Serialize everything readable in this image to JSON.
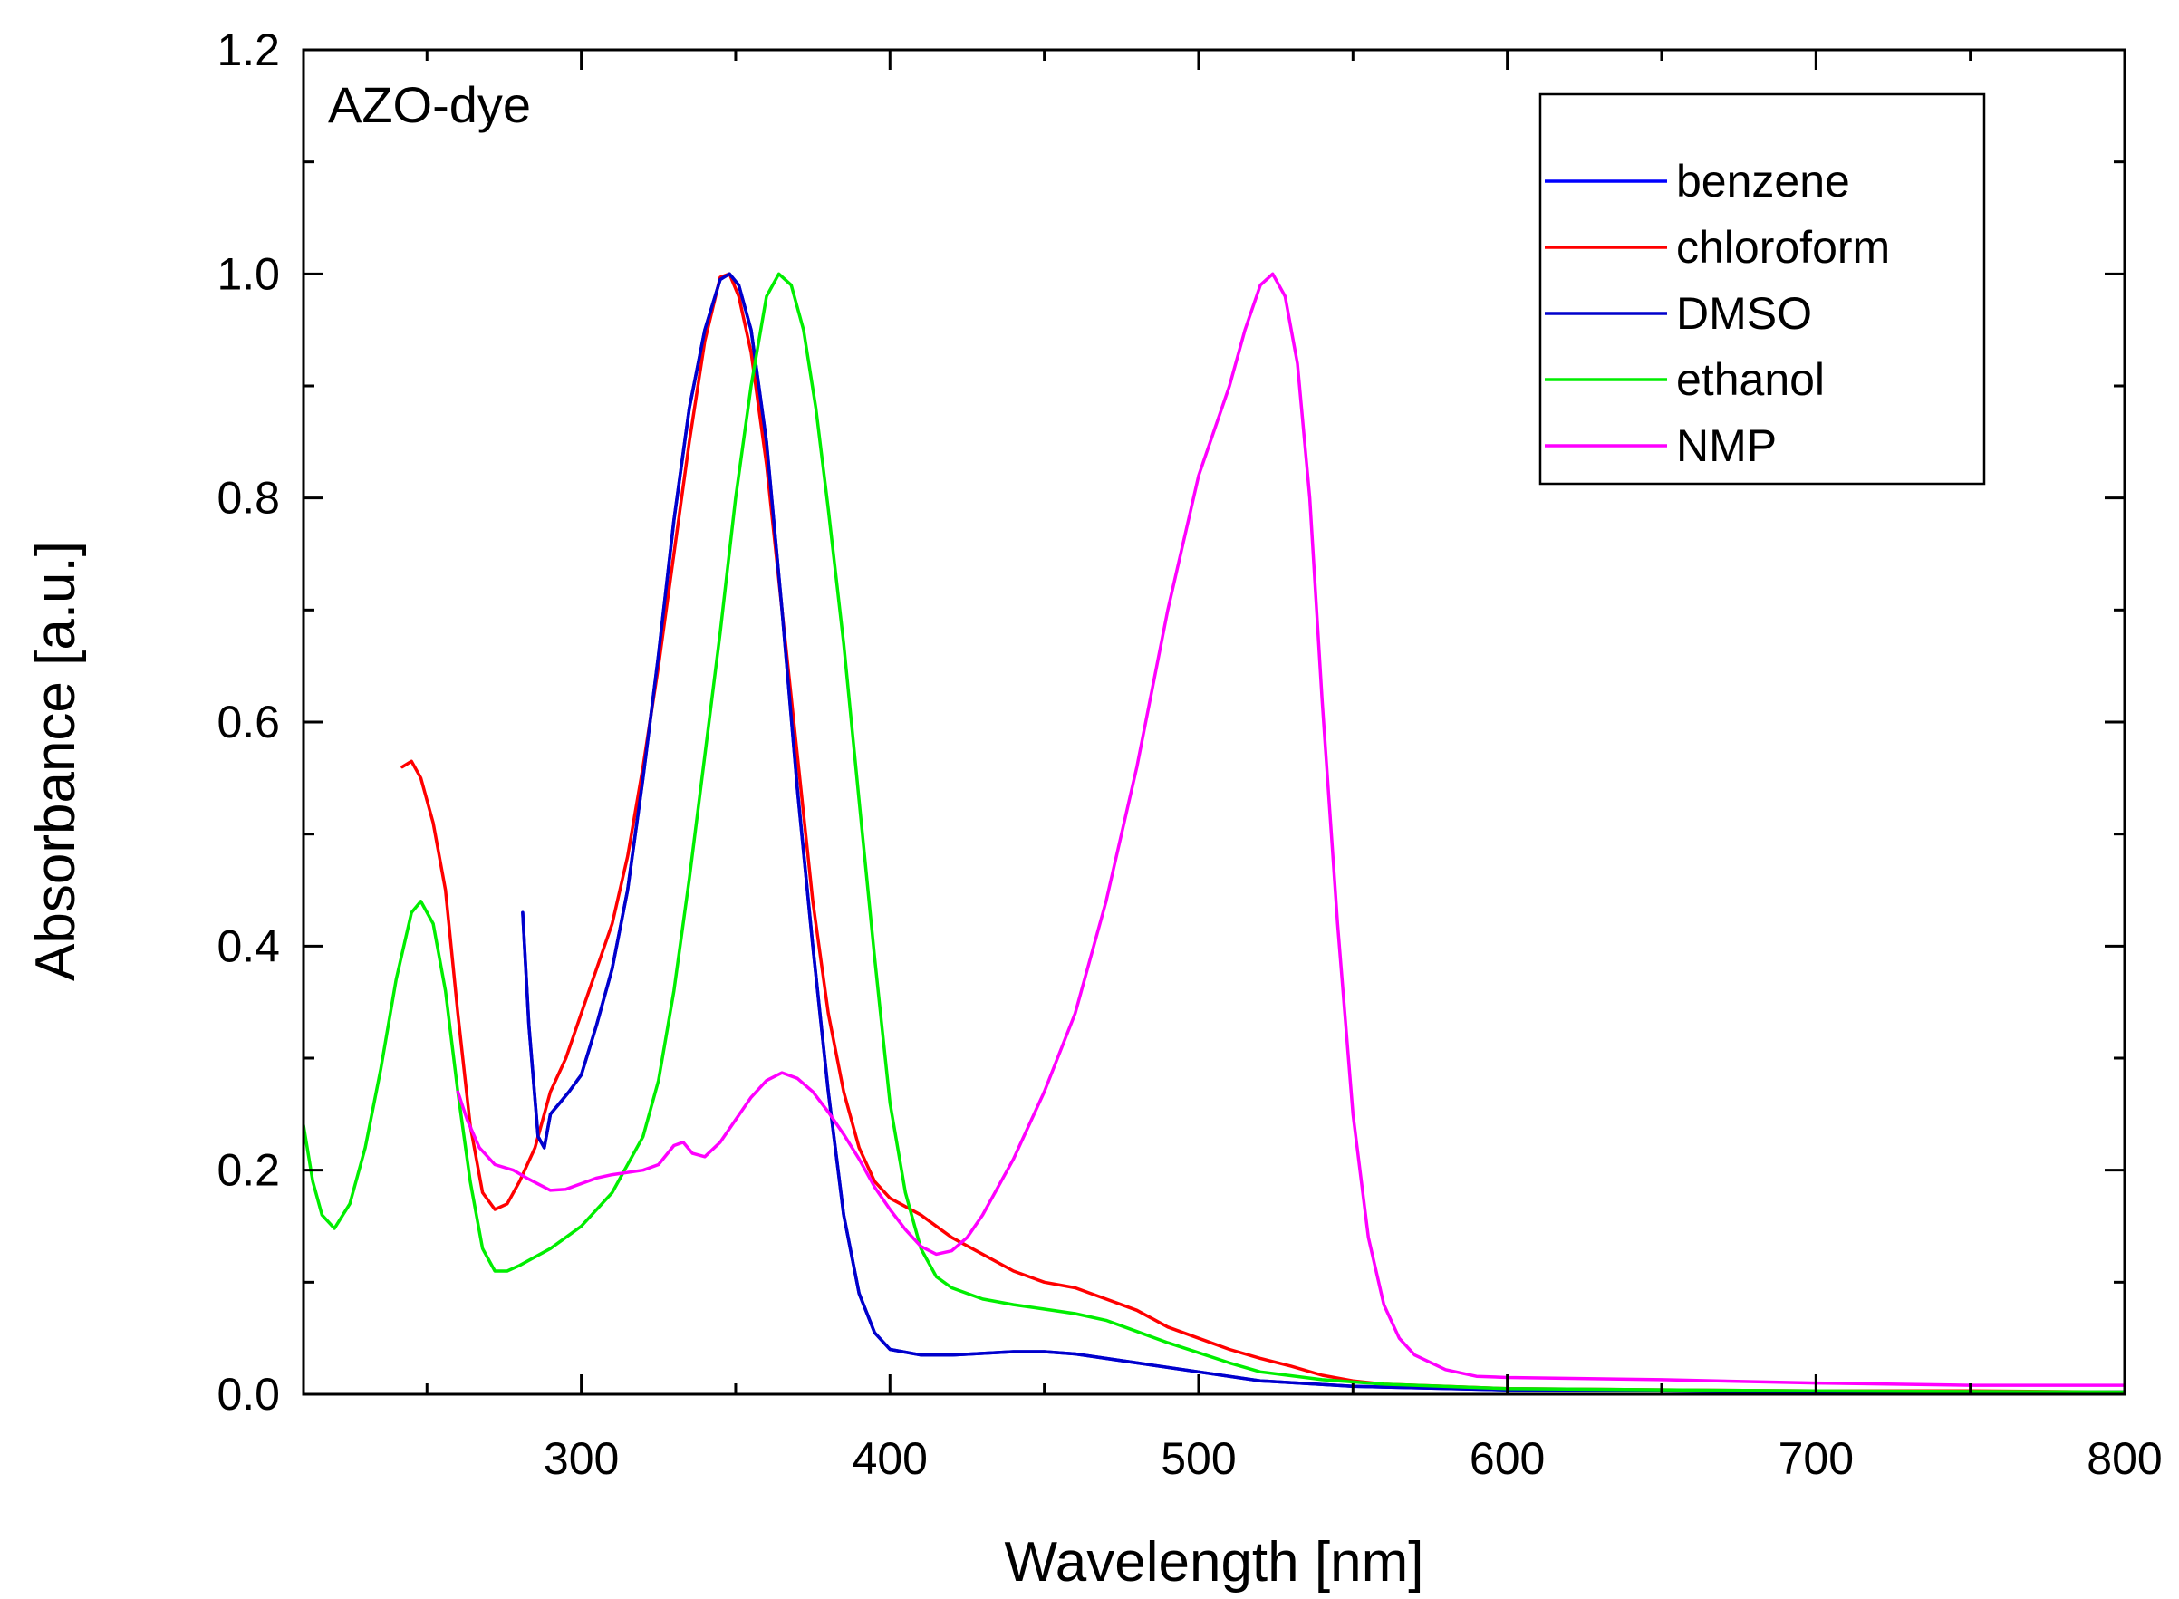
{
  "chart_data": {
    "type": "line",
    "title": "",
    "annotation": "AZO-dye",
    "xlabel": "Wavelength [nm]",
    "ylabel": "Absorbance [a.u.]",
    "xlim": [
      210,
      800
    ],
    "ylim": [
      0,
      1.2
    ],
    "x_ticks": [
      300,
      400,
      500,
      600,
      700,
      800
    ],
    "x_tick_labels": [
      "300",
      "400",
      "500",
      "600",
      "700",
      "800"
    ],
    "y_ticks": [
      0,
      0.2,
      0.4,
      0.6,
      0.8,
      1.0,
      1.2
    ],
    "y_tick_labels": [
      "0.0",
      "0.2",
      "0.4",
      "0.6",
      "0.8",
      "1.0",
      "1.2"
    ],
    "grid": false,
    "legend_position": "top-right",
    "series": [
      {
        "name": "benzene",
        "color": "#0000ff",
        "points": [
          [
            281,
            0.43
          ],
          [
            283,
            0.33
          ],
          [
            286,
            0.23
          ],
          [
            288,
            0.22
          ],
          [
            290,
            0.25
          ],
          [
            293,
            0.26
          ],
          [
            296,
            0.27
          ],
          [
            300,
            0.285
          ],
          [
            305,
            0.33
          ],
          [
            310,
            0.38
          ],
          [
            315,
            0.45
          ],
          [
            320,
            0.55
          ],
          [
            325,
            0.66
          ],
          [
            330,
            0.78
          ],
          [
            335,
            0.88
          ],
          [
            340,
            0.95
          ],
          [
            345,
            0.995
          ],
          [
            348,
            1.0
          ],
          [
            351,
            0.99
          ],
          [
            355,
            0.95
          ],
          [
            360,
            0.85
          ],
          [
            365,
            0.7
          ],
          [
            370,
            0.54
          ],
          [
            375,
            0.4
          ],
          [
            380,
            0.27
          ],
          [
            385,
            0.16
          ],
          [
            390,
            0.09
          ],
          [
            395,
            0.055
          ],
          [
            400,
            0.04
          ],
          [
            410,
            0.035
          ],
          [
            420,
            0.035
          ],
          [
            440,
            0.038
          ],
          [
            450,
            0.038
          ],
          [
            460,
            0.036
          ],
          [
            480,
            0.028
          ],
          [
            500,
            0.02
          ],
          [
            520,
            0.012
          ],
          [
            550,
            0.007
          ],
          [
            600,
            0.004
          ],
          [
            700,
            0.002
          ],
          [
            800,
            0.002
          ]
        ]
      },
      {
        "name": "chloroform",
        "color": "#ff0000",
        "points": [
          [
            242,
            0.56
          ],
          [
            245,
            0.565
          ],
          [
            248,
            0.55
          ],
          [
            252,
            0.51
          ],
          [
            256,
            0.45
          ],
          [
            260,
            0.34
          ],
          [
            264,
            0.24
          ],
          [
            268,
            0.18
          ],
          [
            272,
            0.165
          ],
          [
            276,
            0.17
          ],
          [
            280,
            0.19
          ],
          [
            285,
            0.22
          ],
          [
            290,
            0.27
          ],
          [
            295,
            0.3
          ],
          [
            300,
            0.34
          ],
          [
            305,
            0.38
          ],
          [
            310,
            0.42
          ],
          [
            315,
            0.48
          ],
          [
            320,
            0.56
          ],
          [
            325,
            0.65
          ],
          [
            330,
            0.75
          ],
          [
            335,
            0.85
          ],
          [
            340,
            0.94
          ],
          [
            345,
            0.997
          ],
          [
            348,
            1.0
          ],
          [
            351,
            0.98
          ],
          [
            355,
            0.93
          ],
          [
            360,
            0.83
          ],
          [
            365,
            0.7
          ],
          [
            370,
            0.57
          ],
          [
            375,
            0.44
          ],
          [
            380,
            0.34
          ],
          [
            385,
            0.27
          ],
          [
            390,
            0.22
          ],
          [
            395,
            0.19
          ],
          [
            400,
            0.175
          ],
          [
            410,
            0.16
          ],
          [
            420,
            0.14
          ],
          [
            430,
            0.125
          ],
          [
            440,
            0.11
          ],
          [
            450,
            0.1
          ],
          [
            460,
            0.095
          ],
          [
            470,
            0.085
          ],
          [
            480,
            0.075
          ],
          [
            490,
            0.06
          ],
          [
            500,
            0.05
          ],
          [
            510,
            0.04
          ],
          [
            520,
            0.032
          ],
          [
            530,
            0.025
          ],
          [
            540,
            0.017
          ],
          [
            550,
            0.012
          ],
          [
            560,
            0.009
          ],
          [
            580,
            0.007
          ],
          [
            600,
            0.005
          ],
          [
            650,
            0.004
          ],
          [
            700,
            0.003
          ],
          [
            750,
            0.003
          ],
          [
            800,
            0.002
          ]
        ]
      },
      {
        "name": "DMSO",
        "color": "#0000cc",
        "points": [
          [
            281,
            0.43
          ],
          [
            283,
            0.33
          ],
          [
            286,
            0.23
          ],
          [
            288,
            0.22
          ],
          [
            290,
            0.25
          ],
          [
            293,
            0.26
          ],
          [
            296,
            0.27
          ],
          [
            300,
            0.285
          ],
          [
            305,
            0.33
          ],
          [
            310,
            0.38
          ],
          [
            315,
            0.45
          ],
          [
            320,
            0.55
          ],
          [
            325,
            0.66
          ],
          [
            330,
            0.78
          ],
          [
            335,
            0.88
          ],
          [
            340,
            0.95
          ],
          [
            345,
            0.995
          ],
          [
            348,
            1.0
          ],
          [
            351,
            0.99
          ],
          [
            355,
            0.95
          ],
          [
            360,
            0.85
          ],
          [
            365,
            0.7
          ],
          [
            370,
            0.54
          ],
          [
            375,
            0.4
          ],
          [
            380,
            0.27
          ],
          [
            385,
            0.16
          ],
          [
            390,
            0.09
          ],
          [
            395,
            0.055
          ],
          [
            400,
            0.04
          ],
          [
            410,
            0.035
          ],
          [
            420,
            0.035
          ],
          [
            440,
            0.038
          ],
          [
            450,
            0.038
          ],
          [
            460,
            0.036
          ],
          [
            480,
            0.028
          ],
          [
            500,
            0.02
          ],
          [
            520,
            0.012
          ],
          [
            550,
            0.007
          ],
          [
            600,
            0.004
          ],
          [
            700,
            0.002
          ],
          [
            800,
            0.002
          ]
        ]
      },
      {
        "name": "ethanol",
        "color": "#00ee00",
        "points": [
          [
            210,
            0.24
          ],
          [
            213,
            0.19
          ],
          [
            216,
            0.16
          ],
          [
            220,
            0.148
          ],
          [
            225,
            0.17
          ],
          [
            230,
            0.22
          ],
          [
            235,
            0.29
          ],
          [
            240,
            0.37
          ],
          [
            245,
            0.43
          ],
          [
            248,
            0.44
          ],
          [
            252,
            0.42
          ],
          [
            256,
            0.36
          ],
          [
            260,
            0.27
          ],
          [
            264,
            0.19
          ],
          [
            268,
            0.13
          ],
          [
            272,
            0.11
          ],
          [
            276,
            0.11
          ],
          [
            280,
            0.115
          ],
          [
            290,
            0.13
          ],
          [
            300,
            0.15
          ],
          [
            310,
            0.18
          ],
          [
            320,
            0.23
          ],
          [
            325,
            0.28
          ],
          [
            330,
            0.36
          ],
          [
            335,
            0.46
          ],
          [
            340,
            0.57
          ],
          [
            345,
            0.68
          ],
          [
            350,
            0.8
          ],
          [
            355,
            0.9
          ],
          [
            360,
            0.98
          ],
          [
            364,
            1.0
          ],
          [
            368,
            0.99
          ],
          [
            372,
            0.95
          ],
          [
            376,
            0.88
          ],
          [
            380,
            0.79
          ],
          [
            385,
            0.67
          ],
          [
            390,
            0.53
          ],
          [
            395,
            0.39
          ],
          [
            400,
            0.26
          ],
          [
            405,
            0.18
          ],
          [
            410,
            0.13
          ],
          [
            415,
            0.105
          ],
          [
            420,
            0.095
          ],
          [
            430,
            0.085
          ],
          [
            440,
            0.08
          ],
          [
            450,
            0.076
          ],
          [
            460,
            0.072
          ],
          [
            470,
            0.066
          ],
          [
            480,
            0.056
          ],
          [
            490,
            0.046
          ],
          [
            500,
            0.037
          ],
          [
            510,
            0.028
          ],
          [
            520,
            0.02
          ],
          [
            540,
            0.013
          ],
          [
            560,
            0.009
          ],
          [
            600,
            0.005
          ],
          [
            700,
            0.003
          ],
          [
            800,
            0.002
          ]
        ]
      },
      {
        "name": "NMP",
        "color": "#ff00ff",
        "points": [
          [
            260,
            0.27
          ],
          [
            263,
            0.245
          ],
          [
            267,
            0.22
          ],
          [
            272,
            0.205
          ],
          [
            278,
            0.2
          ],
          [
            283,
            0.192
          ],
          [
            290,
            0.182
          ],
          [
            295,
            0.183
          ],
          [
            300,
            0.188
          ],
          [
            305,
            0.193
          ],
          [
            310,
            0.196
          ],
          [
            320,
            0.2
          ],
          [
            325,
            0.205
          ],
          [
            330,
            0.222
          ],
          [
            333,
            0.225
          ],
          [
            336,
            0.215
          ],
          [
            340,
            0.212
          ],
          [
            345,
            0.225
          ],
          [
            350,
            0.245
          ],
          [
            355,
            0.265
          ],
          [
            360,
            0.28
          ],
          [
            365,
            0.287
          ],
          [
            370,
            0.282
          ],
          [
            375,
            0.27
          ],
          [
            380,
            0.252
          ],
          [
            385,
            0.232
          ],
          [
            390,
            0.21
          ],
          [
            395,
            0.185
          ],
          [
            400,
            0.165
          ],
          [
            405,
            0.147
          ],
          [
            410,
            0.132
          ],
          [
            415,
            0.125
          ],
          [
            420,
            0.128
          ],
          [
            425,
            0.14
          ],
          [
            430,
            0.16
          ],
          [
            440,
            0.21
          ],
          [
            450,
            0.27
          ],
          [
            460,
            0.34
          ],
          [
            470,
            0.44
          ],
          [
            480,
            0.56
          ],
          [
            490,
            0.7
          ],
          [
            500,
            0.82
          ],
          [
            510,
            0.9
          ],
          [
            515,
            0.95
          ],
          [
            520,
            0.99
          ],
          [
            524,
            1.0
          ],
          [
            528,
            0.98
          ],
          [
            532,
            0.92
          ],
          [
            536,
            0.8
          ],
          [
            540,
            0.62
          ],
          [
            545,
            0.42
          ],
          [
            550,
            0.25
          ],
          [
            555,
            0.14
          ],
          [
            560,
            0.08
          ],
          [
            565,
            0.05
          ],
          [
            570,
            0.035
          ],
          [
            580,
            0.022
          ],
          [
            590,
            0.016
          ],
          [
            600,
            0.015
          ],
          [
            650,
            0.013
          ],
          [
            700,
            0.01
          ],
          [
            750,
            0.008
          ],
          [
            800,
            0.008
          ]
        ]
      }
    ]
  }
}
